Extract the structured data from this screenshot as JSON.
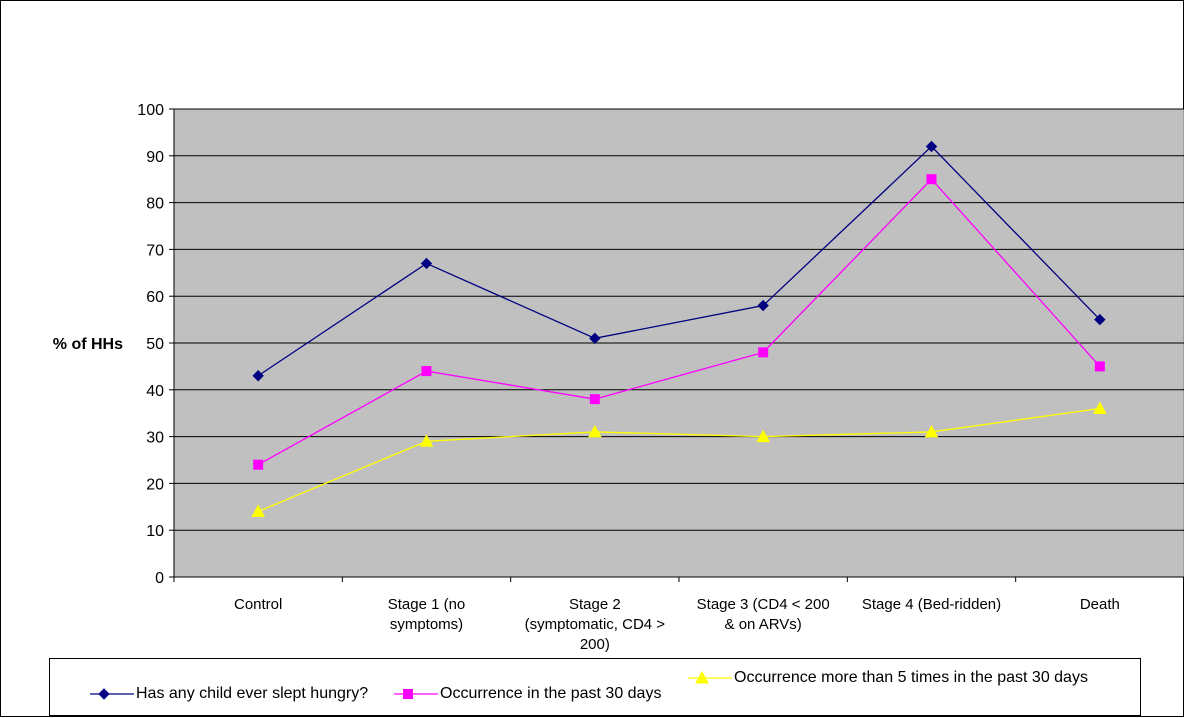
{
  "chart_data": {
    "type": "line",
    "categories": [
      [
        "Control"
      ],
      [
        "Stage 1 (no",
        "symptoms)"
      ],
      [
        "Stage 2",
        "(symptomatic, CD4 >",
        "200)"
      ],
      [
        "Stage 3 (CD4 < 200",
        "& on ARVs)"
      ],
      [
        "Stage 4 (Bed-ridden)"
      ],
      [
        "Death"
      ]
    ],
    "ylabel": "% of HHs",
    "ylim": [
      0,
      100
    ],
    "yticks": [
      0,
      10,
      20,
      30,
      40,
      50,
      60,
      70,
      80,
      90,
      100
    ],
    "grid": true,
    "plot_background": "#c0c0c0",
    "legend_position": "bottom",
    "series": [
      {
        "name": "Has any child ever slept hungry?",
        "color": "#000080",
        "marker": "diamond",
        "values": [
          43,
          67,
          51,
          58,
          92,
          55
        ]
      },
      {
        "name": "Occurrence in the past 30 days",
        "color": "#ff00ff",
        "marker": "square",
        "values": [
          24,
          44,
          38,
          48,
          85,
          45
        ]
      },
      {
        "name": "Occurrence more than 5 times in the past 30 days",
        "color": "#ffff00",
        "marker": "triangle",
        "values": [
          14,
          29,
          31,
          30,
          31,
          36
        ]
      }
    ]
  }
}
